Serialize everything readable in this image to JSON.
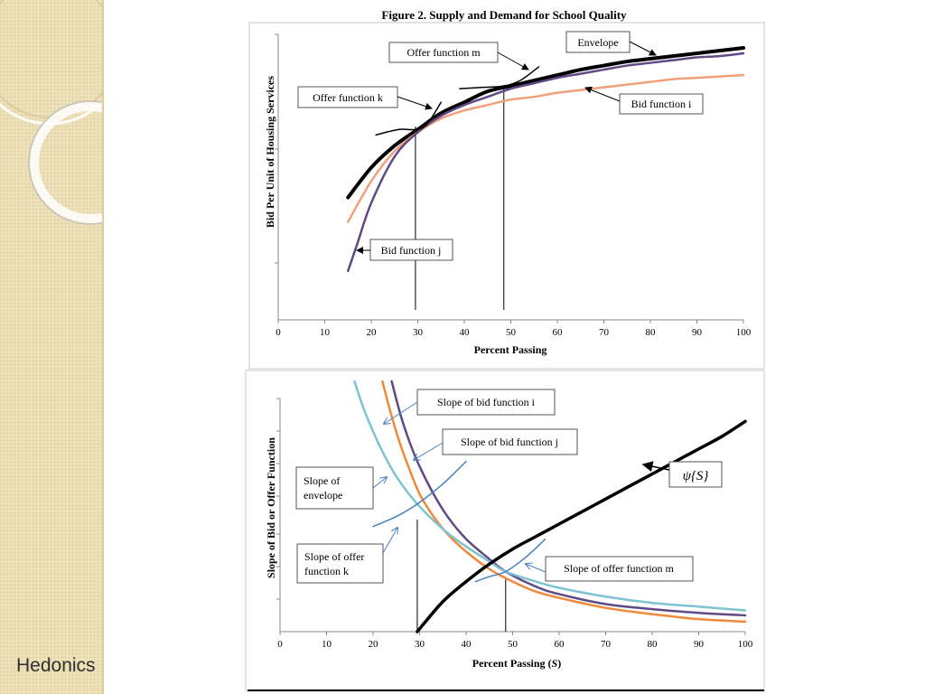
{
  "sidebar": {
    "title": "Hedonics"
  },
  "figure_title": "Figure 2.  Supply and Demand for School Quality",
  "chart_data": [
    {
      "type": "line",
      "xlabel": "Percent Passing",
      "ylabel": "Bid Per Unit of Housing Services",
      "xlim": [
        0,
        100
      ],
      "xticks": [
        "0",
        "10",
        "20",
        "30",
        "40",
        "50",
        "60",
        "70",
        "80",
        "90",
        "100"
      ],
      "grid": false,
      "series": [
        {
          "name": "Envelope",
          "color": "#000000",
          "x": [
            15,
            20,
            25,
            30,
            35,
            40,
            45,
            50,
            55,
            60,
            65,
            70,
            75,
            80,
            85,
            90,
            95,
            100
          ],
          "y": [
            0.45,
            0.56,
            0.64,
            0.7,
            0.76,
            0.8,
            0.84,
            0.86,
            0.88,
            0.9,
            0.92,
            0.935,
            0.95,
            0.96,
            0.97,
            0.98,
            0.99,
            1.0
          ]
        },
        {
          "name": "Bid function i",
          "color": "#f0a07a",
          "x": [
            15,
            20,
            25,
            30,
            35,
            40,
            45,
            50,
            55,
            60,
            65,
            70,
            75,
            80,
            85,
            90,
            95,
            100
          ],
          "y": [
            0.36,
            0.51,
            0.62,
            0.69,
            0.74,
            0.77,
            0.79,
            0.81,
            0.82,
            0.835,
            0.845,
            0.855,
            0.865,
            0.875,
            0.885,
            0.89,
            0.895,
            0.9
          ]
        },
        {
          "name": "Bid function j",
          "color": "#5f4a85",
          "x": [
            15,
            17,
            20,
            25,
            30,
            35,
            40,
            45,
            50,
            55,
            60,
            65,
            70,
            75,
            80,
            85,
            90,
            95,
            100
          ],
          "y": [
            0.18,
            0.28,
            0.43,
            0.6,
            0.69,
            0.75,
            0.79,
            0.82,
            0.85,
            0.87,
            0.89,
            0.905,
            0.92,
            0.935,
            0.945,
            0.955,
            0.965,
            0.97,
            0.98
          ]
        },
        {
          "name": "Offer function k",
          "color": "#000000",
          "x": [
            21,
            26,
            29.5,
            32,
            35
          ],
          "y": [
            0.68,
            0.7,
            0.7,
            0.72,
            0.8
          ]
        },
        {
          "name": "Offer function m",
          "color": "#000000",
          "x": [
            39,
            44,
            48.5,
            52,
            56
          ],
          "y": [
            0.85,
            0.855,
            0.86,
            0.88,
            0.93
          ]
        }
      ],
      "vlines": [
        29.5,
        48.5
      ],
      "annotations": [
        "Envelope",
        "Offer function m",
        "Offer  function k",
        "Bid function i",
        "Bid function j"
      ]
    },
    {
      "type": "line",
      "xlabel": "Percent Passing (",
      "xlabel_var": "S",
      "xlabel_close": ")",
      "ylabel": "Slope of Bid or Offer Function",
      "xlim": [
        0,
        100
      ],
      "xticks": [
        "0",
        "10",
        "20",
        "30",
        "40",
        "50",
        "60",
        "70",
        "80",
        "90",
        "100"
      ],
      "grid": false,
      "series": [
        {
          "name": "Slope of bid function i",
          "color": "#f08a3a",
          "x": [
            22,
            24,
            26,
            28,
            30,
            33,
            36,
            40,
            45,
            50,
            55,
            60,
            70,
            80,
            90,
            100
          ],
          "y": [
            1.0,
            0.86,
            0.74,
            0.64,
            0.55,
            0.46,
            0.39,
            0.32,
            0.25,
            0.2,
            0.16,
            0.135,
            0.095,
            0.07,
            0.05,
            0.04
          ]
        },
        {
          "name": "Slope of bid function j",
          "color": "#5f4a85",
          "x": [
            24,
            26,
            28,
            30,
            33,
            36,
            40,
            45,
            48.5,
            55,
            60,
            70,
            80,
            90,
            100
          ],
          "y": [
            1.0,
            0.86,
            0.75,
            0.66,
            0.55,
            0.46,
            0.37,
            0.29,
            0.24,
            0.18,
            0.15,
            0.11,
            0.09,
            0.075,
            0.065
          ]
        },
        {
          "name": "Slope of envelope",
          "color": "#7ec3d2",
          "x": [
            16,
            18,
            20,
            22,
            25,
            29.5,
            35,
            40,
            45,
            48.5,
            55,
            60,
            70,
            80,
            90,
            100
          ],
          "y": [
            1.0,
            0.89,
            0.8,
            0.72,
            0.62,
            0.51,
            0.41,
            0.34,
            0.28,
            0.24,
            0.2,
            0.175,
            0.14,
            0.115,
            0.1,
            0.085
          ]
        },
        {
          "name": "Slope of offer function k",
          "color": "#4a7fc0",
          "x": [
            20,
            25,
            29.5,
            35,
            40
          ],
          "y": [
            0.42,
            0.46,
            0.51,
            0.59,
            0.68
          ]
        },
        {
          "name": "Slope of offer function m",
          "color": "#4a7fc0",
          "x": [
            42,
            45,
            48.5,
            53,
            57
          ],
          "y": [
            0.2,
            0.22,
            0.24,
            0.3,
            0.37
          ]
        },
        {
          "name": "ψ{S}",
          "color": "#000000",
          "x": [
            29.5,
            35,
            40,
            45,
            50,
            55,
            60,
            65,
            70,
            75,
            80,
            85,
            90,
            95,
            100
          ],
          "y": [
            0.0,
            0.12,
            0.2,
            0.27,
            0.33,
            0.38,
            0.43,
            0.48,
            0.53,
            0.58,
            0.63,
            0.68,
            0.73,
            0.78,
            0.84
          ]
        }
      ],
      "vlines": [
        29.5,
        48.5
      ],
      "annotations": [
        "Slope of bid function i",
        "Slope of bid function j",
        "Slope of",
        "envelope",
        "Slope of offer",
        "function k",
        "Slope of offer function m",
        "ψ{S}"
      ]
    }
  ]
}
